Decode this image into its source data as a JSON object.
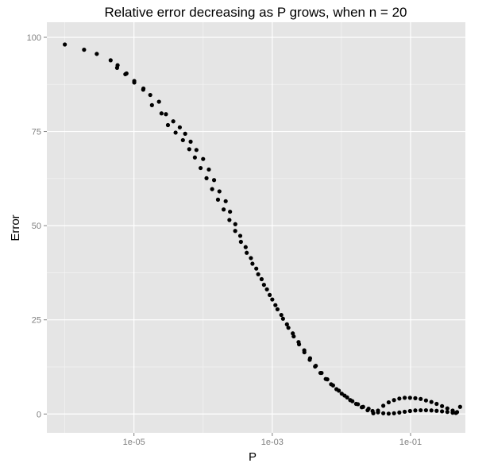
{
  "chart_data": {
    "type": "scatter",
    "title": "Relative error decreasing as P grows, when n = 20",
    "xlabel": "P",
    "ylabel": "Error",
    "x_scale": "log10",
    "xlim": [
      5.5e-07,
      0.62
    ],
    "ylim": [
      -5,
      104
    ],
    "x_ticks": [
      {
        "value": 1e-05,
        "label": "1e-05"
      },
      {
        "value": 0.001,
        "label": "1e-03"
      },
      {
        "value": 0.1,
        "label": "1e-01"
      }
    ],
    "y_ticks": [
      {
        "value": 0,
        "label": "0"
      },
      {
        "value": 25,
        "label": "25"
      },
      {
        "value": 50,
        "label": "50"
      },
      {
        "value": 75,
        "label": "75"
      },
      {
        "value": 100,
        "label": "100"
      }
    ],
    "grid": true,
    "legend": "none",
    "colors": {
      "panel": "#e5e5e5",
      "grid_major": "#ffffff",
      "grid_minor": "#f2f2f2",
      "points": "#000000"
    },
    "series": [
      {
        "x": [
          1e-06,
          1.9e-06,
          2.9e-06,
          4.6e-06,
          5.8e-06,
          7.8e-06,
          1.01e-05,
          1.37e-05,
          1.72e-05,
          2.3e-05,
          2.9e-05,
          3.7e-05,
          4.6e-05,
          5.5e-05,
          6.6e-05,
          8e-05,
          0.0001,
          0.000121,
          0.000144,
          0.000172,
          0.000212,
          0.000245,
          0.000292,
          0.000344,
          0.000412,
          0.000491,
          0.000587,
          0.000701,
          0.000837,
          0.001,
          0.00119,
          0.00143,
          0.00171,
          0.00204,
          0.00244,
          0.00291,
          0.00348,
          0.00416,
          0.00497,
          0.00593,
          0.00709,
          0.00847,
          0.0101,
          0.0121,
          0.0144,
          0.0173,
          0.0206,
          0.0247,
          0.0282,
          0.0338,
          0.0403,
          0.0482,
          0.0576,
          0.0688,
          0.0822,
          0.0982,
          0.117,
          0.14,
          0.167,
          0.2,
          0.238,
          0.285,
          0.34,
          0.406,
          0.452,
          0.52
        ],
        "y": [
          98.1,
          96.7,
          95.6,
          93.9,
          92.6,
          90.4,
          88.4,
          86.4,
          84.7,
          82.9,
          79.6,
          77.7,
          76.1,
          74.4,
          72.3,
          70.1,
          67.7,
          64.9,
          62.1,
          59.1,
          56.5,
          53.7,
          50.4,
          47.3,
          44.3,
          41.4,
          38.6,
          35.8,
          33.1,
          30.4,
          27.8,
          25.3,
          22.9,
          20.6,
          18.5,
          16.4,
          14.4,
          12.6,
          10.9,
          9.3,
          7.9,
          6.6,
          5.4,
          4.4,
          3.4,
          2.6,
          1.9,
          1.4,
          0.8,
          0.45,
          0.2,
          0.1,
          0.2,
          0.4,
          0.6,
          0.8,
          0.95,
          1.0,
          1.0,
          0.95,
          0.85,
          0.7,
          0.55,
          0.35,
          0.3,
          1.9
        ]
      },
      {
        "x": [
          5.7e-06,
          7.5e-06,
          1.01e-05,
          1.36e-05,
          1.82e-05,
          2.5e-05,
          3.1e-05,
          4e-05,
          5.1e-05,
          6.3e-05,
          7.6e-05,
          9.2e-05,
          0.000112,
          0.000135,
          0.000164,
          0.000198,
          0.00024,
          0.000291,
          0.000352,
          0.000427,
          0.000517,
          0.000626,
          0.000758,
          0.000918,
          0.00111,
          0.00135,
          0.00163,
          0.00198,
          0.0024,
          0.0029,
          0.00352,
          0.00426,
          0.00516,
          0.00625,
          0.00757,
          0.00917,
          0.0111,
          0.0134,
          0.0163,
          0.0197,
          0.0239,
          0.0289,
          0.0338,
          0.0403,
          0.0482,
          0.0576,
          0.0688,
          0.0822,
          0.0982,
          0.117,
          0.14,
          0.167,
          0.2,
          0.238,
          0.285,
          0.34,
          0.406,
          0.47
        ],
        "y": [
          91.9,
          90.2,
          88.0,
          86.1,
          82.0,
          79.8,
          76.7,
          74.7,
          72.7,
          70.3,
          68.1,
          65.3,
          62.6,
          59.7,
          56.9,
          54.3,
          51.5,
          48.6,
          45.7,
          42.8,
          39.9,
          37.1,
          34.3,
          31.6,
          28.9,
          26.3,
          23.8,
          21.4,
          19.1,
          16.9,
          14.8,
          12.8,
          10.9,
          9.2,
          7.6,
          6.2,
          4.9,
          3.7,
          2.7,
          1.8,
          1.0,
          0.2,
          0.9,
          2.2,
          3.1,
          3.7,
          4.1,
          4.3,
          4.3,
          4.2,
          4.0,
          3.6,
          3.2,
          2.7,
          2.1,
          1.5,
          0.9,
          0.5
        ]
      }
    ]
  }
}
